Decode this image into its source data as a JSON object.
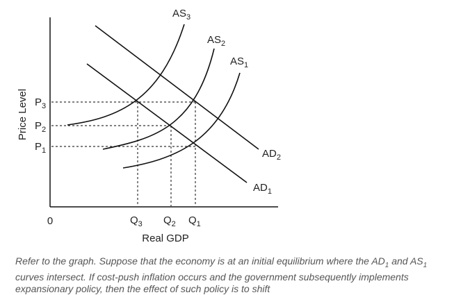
{
  "axes": {
    "y_label": "Price Level",
    "x_label": "Real GDP",
    "origin": "0"
  },
  "price_ticks": [
    {
      "main": "P",
      "sub": "3"
    },
    {
      "main": "P",
      "sub": "2"
    },
    {
      "main": "P",
      "sub": "1"
    }
  ],
  "quantity_ticks": [
    {
      "main": "Q",
      "sub": "3"
    },
    {
      "main": "Q",
      "sub": "2"
    },
    {
      "main": "Q",
      "sub": "1"
    }
  ],
  "curves": [
    {
      "main": "AS",
      "sub": "3"
    },
    {
      "main": "AS",
      "sub": "2"
    },
    {
      "main": "AS",
      "sub": "1"
    },
    {
      "main": "AD",
      "sub": "2"
    },
    {
      "main": "AD",
      "sub": "1"
    }
  ],
  "caption": [
    "Refer to the graph. Suppose that the economy is at an initial equilibrium where the AD",
    "1",
    " and AS",
    "1",
    " curves intersect. If cost-push inflation occurs and the government subsequently implements expansionary policy, then the effect of such policy is to shift"
  ]
}
